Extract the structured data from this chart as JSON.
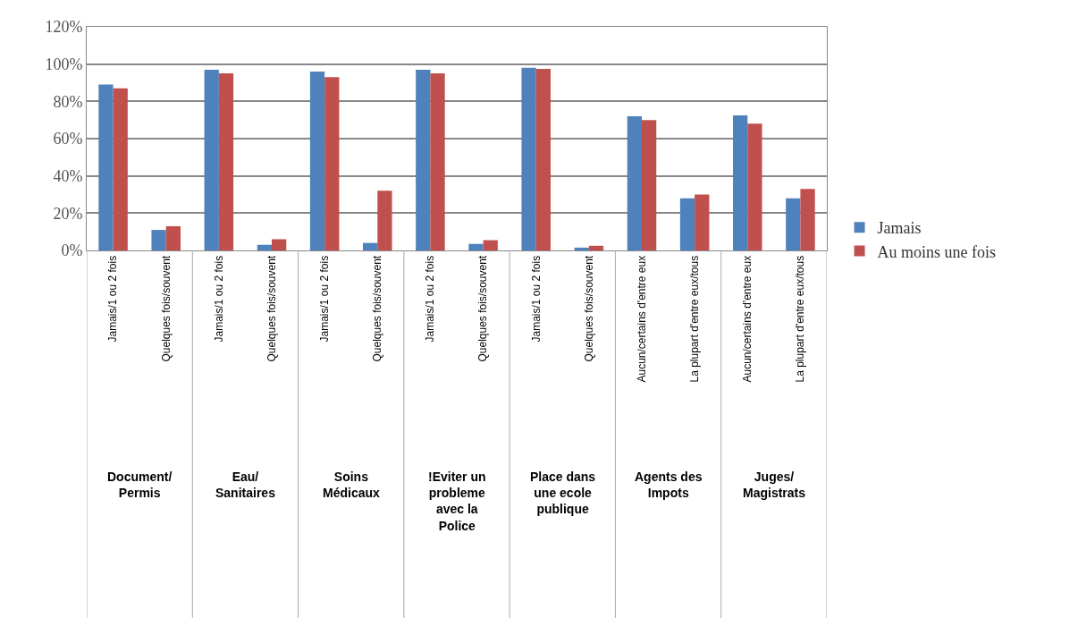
{
  "chart_data": {
    "type": "bar",
    "categories": [
      "Jamais/1 ou 2 fois",
      "Quelques fois/souvent",
      "Jamais/1 ou 2 fois",
      "Quelques fois/souvent",
      "Jamais/1 ou 2 fois",
      "Quelques fois/souvent",
      "Jamais/1 ou 2 fois",
      "Quelques fois/souvent",
      "Jamais/1 ou 2 fois",
      "Quelques fois/souvent",
      "Aucun/certains d'entre eux",
      "La plupart d'entre eux/tous",
      "Aucun/certains d'entre eux",
      "La plupart d'entre eux/tous"
    ],
    "series": [
      {
        "name": "Jamais",
        "color": "#4f81bd",
        "values": [
          89,
          11,
          97,
          3,
          96,
          4,
          97,
          3.5,
          98,
          1.5,
          72,
          28,
          72.5,
          28
        ]
      },
      {
        "name": "Au moins une fois",
        "color": "#c0504d",
        "values": [
          87,
          13,
          95,
          6,
          93,
          32,
          95,
          5.5,
          97.5,
          2.5,
          70,
          30,
          68,
          33
        ]
      }
    ],
    "annotations": [
      "Document/\nPermis",
      "Eau/\nSanitaires",
      "Soins\nMédicaux",
      "!Eviter un\nprobleme\navec la\nPolice",
      "Place dans\nune ecole\npublique",
      "Agents des\nImpots",
      "Juges/\nMagistrats"
    ],
    "ylim": [
      0,
      120
    ],
    "yticks": [
      {
        "value": 0,
        "label": "0%"
      },
      {
        "value": 20,
        "label": "20%"
      },
      {
        "value": 40,
        "label": "40%"
      },
      {
        "value": 60,
        "label": "60%"
      },
      {
        "value": 80,
        "label": "80%"
      },
      {
        "value": 100,
        "label": "100%"
      },
      {
        "value": 120,
        "label": "120%"
      }
    ],
    "grid": "y",
    "legend": "right"
  }
}
